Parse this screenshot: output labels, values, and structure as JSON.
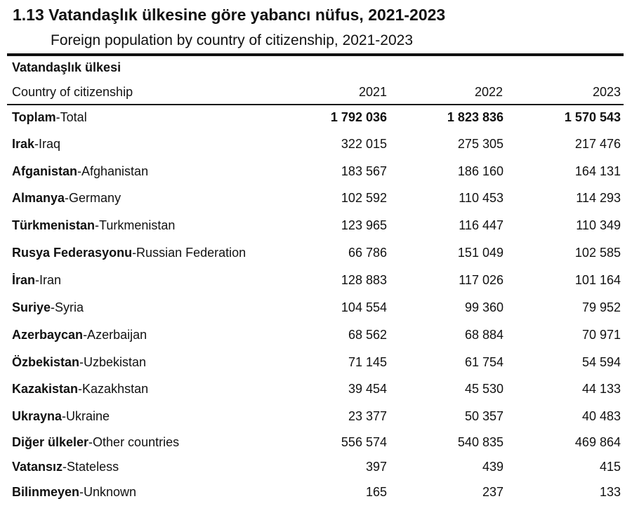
{
  "title": {
    "tr": "1.13 Vatandaşlık ülkesine göre yabancı nüfus, 2021-2023",
    "en": "Foreign population by country of citizenship, 2021-2023"
  },
  "header": {
    "col_tr": "Vatandaşlık ülkesi",
    "col_en": "Country of citizenship",
    "years": [
      "2021",
      "2022",
      "2023"
    ]
  },
  "rows": [
    {
      "tr": "Toplam",
      "en": "-Total",
      "v2021": "1 792 036",
      "v2022": "1 823 836",
      "v2023": "1 570 543"
    },
    {
      "tr": "Irak",
      "en": "-Iraq",
      "v2021": "322 015",
      "v2022": "275 305",
      "v2023": "217 476"
    },
    {
      "tr": "Afganistan",
      "en": "-Afghanistan",
      "v2021": "183 567",
      "v2022": "186 160",
      "v2023": "164 131"
    },
    {
      "tr": "Almanya",
      "en": "-Germany",
      "v2021": "102 592",
      "v2022": "110 453",
      "v2023": "114 293"
    },
    {
      "tr": "Türkmenistan",
      "en": "-Turkmenistan",
      "v2021": "123 965",
      "v2022": "116 447",
      "v2023": "110 349"
    },
    {
      "tr": "Rusya Federasyonu",
      "en": "-Russian Federation",
      "v2021": "66 786",
      "v2022": "151 049",
      "v2023": "102 585"
    },
    {
      "tr": "İran",
      "en": "-Iran",
      "v2021": "128 883",
      "v2022": "117 026",
      "v2023": "101 164"
    },
    {
      "tr": "Suriye",
      "en": "-Syria",
      "v2021": "104 554",
      "v2022": "99 360",
      "v2023": "79 952"
    },
    {
      "tr": "Azerbaycan",
      "en": "-Azerbaijan",
      "v2021": "68 562",
      "v2022": "68 884",
      "v2023": "70 971"
    },
    {
      "tr": "Özbekistan",
      "en": "-Uzbekistan",
      "v2021": "71 145",
      "v2022": "61 754",
      "v2023": "54 594"
    },
    {
      "tr": "Kazakistan",
      "en": "-Kazakhstan",
      "v2021": "39 454",
      "v2022": "45 530",
      "v2023": "44 133"
    },
    {
      "tr": "Ukrayna",
      "en": "-Ukraine",
      "v2021": "23 377",
      "v2022": "50 357",
      "v2023": "40 483"
    },
    {
      "tr": "Diğer ülkeler",
      "en": "-Other countries",
      "v2021": "556 574",
      "v2022": "540 835",
      "v2023": "469 864"
    },
    {
      "tr": "Vatansız",
      "en": "-Stateless",
      "v2021": "397",
      "v2022": "439",
      "v2023": "415"
    },
    {
      "tr": "Bilinmeyen",
      "en": "-Unknown",
      "v2021": "165",
      "v2022": "237",
      "v2023": "133"
    }
  ]
}
